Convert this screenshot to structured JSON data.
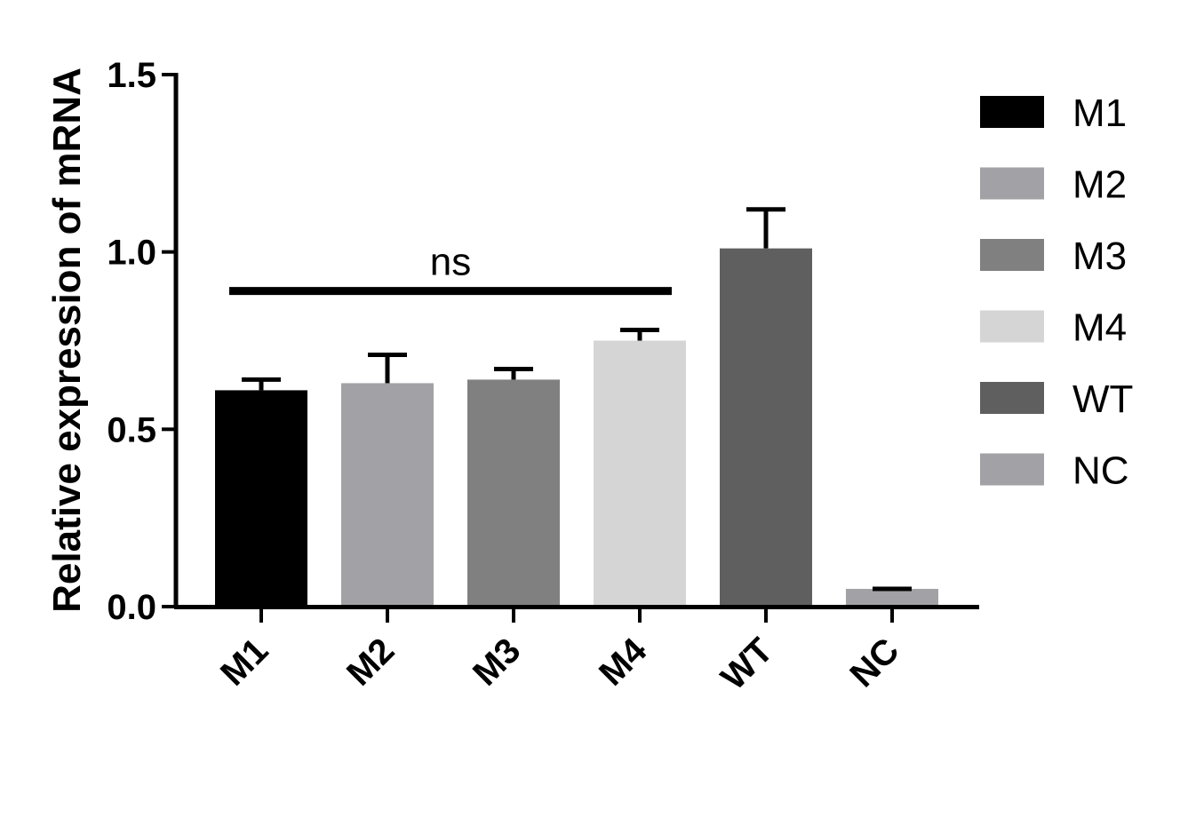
{
  "chart_data": {
    "type": "bar",
    "title": "",
    "xlabel": "",
    "ylabel": "Relative expression of mRNA",
    "ylim": [
      0,
      1.5
    ],
    "yticks": [
      "0.0",
      "0.5",
      "1.0",
      "1.5"
    ],
    "ytick_values": [
      0,
      0.5,
      1.0,
      1.5
    ],
    "categories": [
      "M1",
      "M2",
      "M3",
      "M4",
      "WT",
      "NC"
    ],
    "values": [
      0.61,
      0.63,
      0.64,
      0.75,
      1.01,
      0.05
    ],
    "errors": [
      0.03,
      0.08,
      0.03,
      0.03,
      0.11,
      0.0
    ],
    "colors": [
      "#000000",
      "#a2a2a6",
      "#808080",
      "#d5d5d5",
      "#5f5f5f",
      "#a2a2a6"
    ],
    "grid": false,
    "legend": {
      "placement": "right",
      "entries": [
        {
          "label": "M1",
          "color": "#000000"
        },
        {
          "label": "M2",
          "color": "#a2a2a6"
        },
        {
          "label": "M3",
          "color": "#808080"
        },
        {
          "label": "M4",
          "color": "#d5d5d5"
        },
        {
          "label": "WT",
          "color": "#5f5f5f"
        },
        {
          "label": "NC",
          "color": "#a2a2a6"
        }
      ]
    },
    "annotations": [
      {
        "text": "ns",
        "from_category": "M1",
        "to_category": "M4",
        "y": 0.89
      }
    ]
  }
}
